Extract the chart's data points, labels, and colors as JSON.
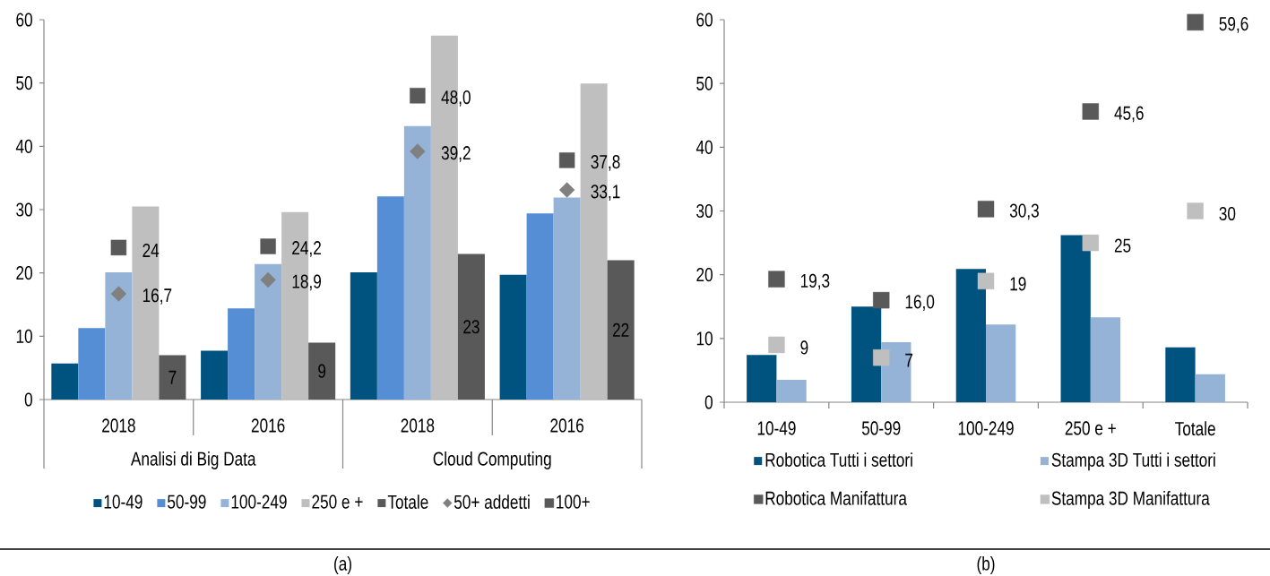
{
  "chart_data": [
    {
      "type": "bar",
      "title": "(a)",
      "categories": [
        "2018",
        "2016",
        "2018",
        "2016"
      ],
      "series": [
        {
          "name": "10-49",
          "color": "#00527f",
          "values": [
            5.7,
            7.7,
            20.1,
            19.7
          ]
        },
        {
          "name": "50-99",
          "color": "#558ed5",
          "values": [
            11.3,
            14.4,
            32.1,
            29.4
          ]
        },
        {
          "name": "100-249",
          "color": "#95b3d7",
          "values": [
            20.1,
            21.4,
            43.2,
            31.9
          ]
        },
        {
          "name": "250 e +",
          "color": "#bfbfbf",
          "values": [
            30.5,
            29.6,
            57.5,
            49.9
          ]
        },
        {
          "name": "Totale",
          "color": "#595959",
          "values": [
            7,
            9,
            23,
            22
          ],
          "value_labels": [
            "7",
            "9",
            "23",
            "22"
          ]
        },
        {
          "name": "50+ addetti",
          "type": "scatter",
          "marker": "diamond",
          "color": "#808080",
          "values": [
            16.7,
            18.9,
            39.2,
            33.1
          ],
          "value_labels": [
            "16,7",
            "18,9",
            "39,2",
            "33,1"
          ]
        },
        {
          "name": "100+",
          "type": "scatter",
          "marker": "square",
          "color": "#595959",
          "values": [
            24,
            24.2,
            48.0,
            37.8
          ],
          "value_labels": [
            "24",
            "24,2",
            "48,0",
            "37,8"
          ]
        }
      ],
      "annotations": [
        "Analisi di Big Data",
        "Cloud Computing"
      ],
      "ylim": [
        0,
        60
      ],
      "yticks": [
        0,
        10,
        20,
        30,
        40,
        50,
        60
      ],
      "legend": "bottom"
    },
    {
      "type": "bar",
      "title": "(b)",
      "categories": [
        "10-49",
        "50-99",
        "100-249",
        "250 e +",
        "Totale"
      ],
      "series": [
        {
          "name": "Robotica Tutti i settori",
          "color": "#00527f",
          "values": [
            7.4,
            15.0,
            20.9,
            26.2,
            8.6
          ]
        },
        {
          "name": "Stampa 3D Tutti i settori",
          "color": "#95b3d7",
          "values": [
            3.5,
            9.4,
            12.2,
            13.3,
            4.4
          ]
        },
        {
          "name": "Robotica Manifattura",
          "type": "scatter",
          "marker": "square",
          "color": "#595959",
          "values": [
            19.3,
            16.0,
            30.3,
            45.6,
            59.6
          ],
          "value_labels": [
            "19,3",
            "16,0",
            "30,3",
            "45,6",
            "59,6"
          ]
        },
        {
          "name": "Stampa 3D Manifattura",
          "type": "scatter",
          "marker": "square",
          "color": "#bfbfbf",
          "values": [
            9,
            7,
            19,
            25,
            30
          ],
          "value_labels": [
            "9",
            "7",
            "19",
            "25",
            "30"
          ]
        }
      ],
      "ylim": [
        0,
        60
      ],
      "yticks": [
        0,
        10,
        20,
        30,
        40,
        50,
        60
      ],
      "legend": "bottom"
    }
  ]
}
